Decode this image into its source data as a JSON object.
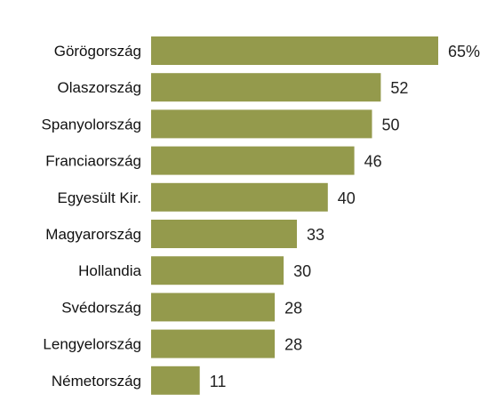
{
  "chart_data": {
    "type": "bar",
    "orientation": "horizontal",
    "categories": [
      "Görögország",
      "Olaszország",
      "Spanyolország",
      "Franciaország",
      "Egyesült Kir.",
      "Magyarország",
      "Hollandia",
      "Svédország",
      "Lengyelország",
      "Németország"
    ],
    "values": [
      65,
      52,
      50,
      46,
      40,
      33,
      30,
      28,
      28,
      11
    ],
    "value_labels": [
      "65%",
      "52",
      "50",
      "46",
      "40",
      "33",
      "30",
      "28",
      "28",
      "11"
    ],
    "xlim": [
      0,
      65
    ],
    "grid": false,
    "bar_color": "#949a4c"
  }
}
